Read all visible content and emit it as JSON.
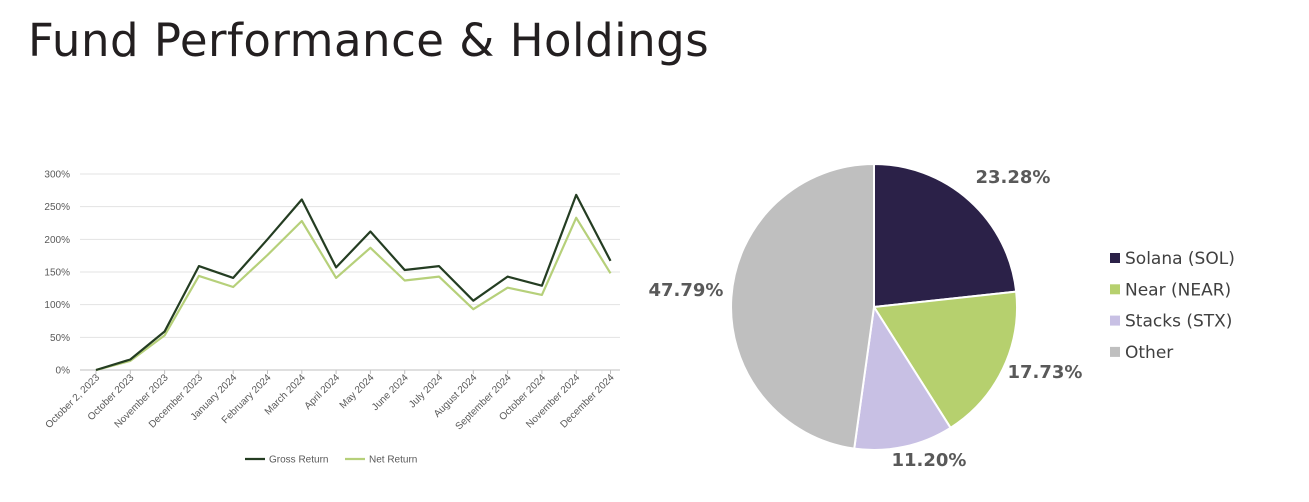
{
  "page": {
    "title": "Fund Performance & Holdings"
  },
  "chart_data": [
    {
      "type": "line",
      "categories": [
        "October 2, 2023",
        "October 2023",
        "November 2023",
        "December 2023",
        "January 2024",
        "February 2024",
        "March 2024",
        "April 2024",
        "May 2024",
        "June 2024",
        "July 2024",
        "August 2024",
        "September 2024",
        "October 2024",
        "November 2024",
        "December 2024"
      ],
      "series": [
        {
          "name": "Gross Return",
          "color": "#243d22",
          "values": [
            0,
            16,
            59,
            159,
            141,
            200,
            261,
            157,
            212,
            153,
            159,
            106,
            143,
            129,
            268,
            167
          ]
        },
        {
          "name": "Net Return",
          "color": "#b6d07a",
          "values": [
            0,
            14,
            53,
            144,
            127,
            176,
            228,
            141,
            187,
            137,
            143,
            93,
            126,
            115,
            233,
            148
          ]
        }
      ],
      "yticks": [
        "0%",
        "50%",
        "100%",
        "150%",
        "200%",
        "250%",
        "300%"
      ],
      "ylim": [
        0,
        300
      ],
      "grid": true,
      "legend": "bottom"
    },
    {
      "type": "pie",
      "slices": [
        {
          "label": "Solana (SOL)",
          "value": 23.28,
          "display": "23.28%",
          "color": "#2b2148"
        },
        {
          "label": "Near (NEAR)",
          "value": 17.73,
          "display": "17.73%",
          "color": "#b6d06e"
        },
        {
          "label": "Stacks (STX)",
          "value": 11.2,
          "display": "11.20%",
          "color": "#c8c0e4"
        },
        {
          "label": "Other",
          "value": 47.79,
          "display": "47.79%",
          "color": "#bfbfbf"
        }
      ],
      "legend": "right"
    }
  ]
}
